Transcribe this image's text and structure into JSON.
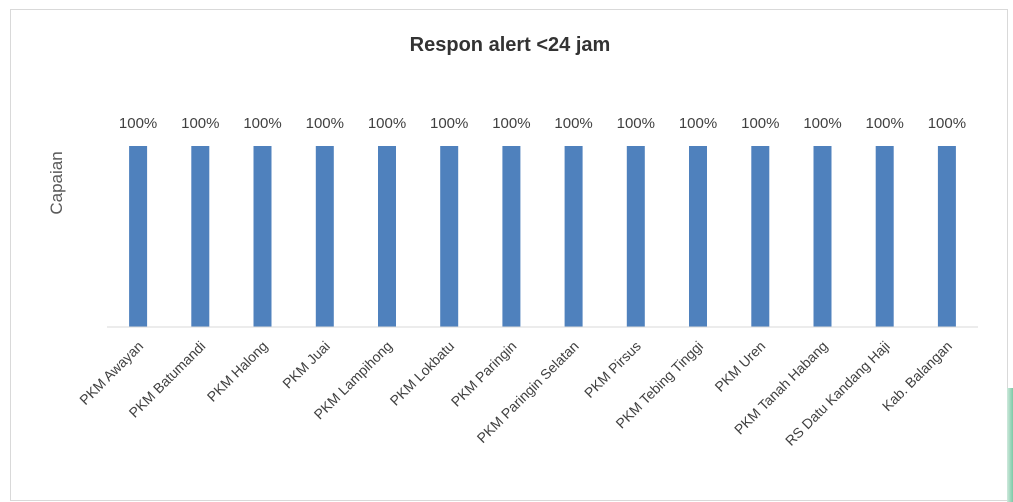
{
  "chart_data": {
    "type": "bar",
    "title": "Respon alert <24 jam",
    "xlabel": "",
    "ylabel": "Capaian",
    "ylim": [
      0,
      1
    ],
    "grid": false,
    "legend": "none",
    "categories": [
      "PKM Awayan",
      "PKM Batumandi",
      "PKM Halong",
      "PKM Juai",
      "PKM Lampihong",
      "PKM Lokbatu",
      "PKM Paringin",
      "PKM Paringin Selatan",
      "PKM Pirsus",
      "PKM Tebing Tinggi",
      "PKM Uren",
      "PKM Tanah Habang",
      "RS Datu Kandang Haji",
      "Kab. Balangan"
    ],
    "values": [
      1,
      1,
      1,
      1,
      1,
      1,
      1,
      1,
      1,
      1,
      1,
      1,
      1,
      1
    ],
    "data_labels": [
      "100%",
      "100%",
      "100%",
      "100%",
      "100%",
      "100%",
      "100%",
      "100%",
      "100%",
      "100%",
      "100%",
      "100%",
      "100%",
      "100%"
    ],
    "colors": {
      "bar": "#4f81bd",
      "axis": "#d9d9d9",
      "title": "#333333",
      "text": "#404040"
    }
  }
}
